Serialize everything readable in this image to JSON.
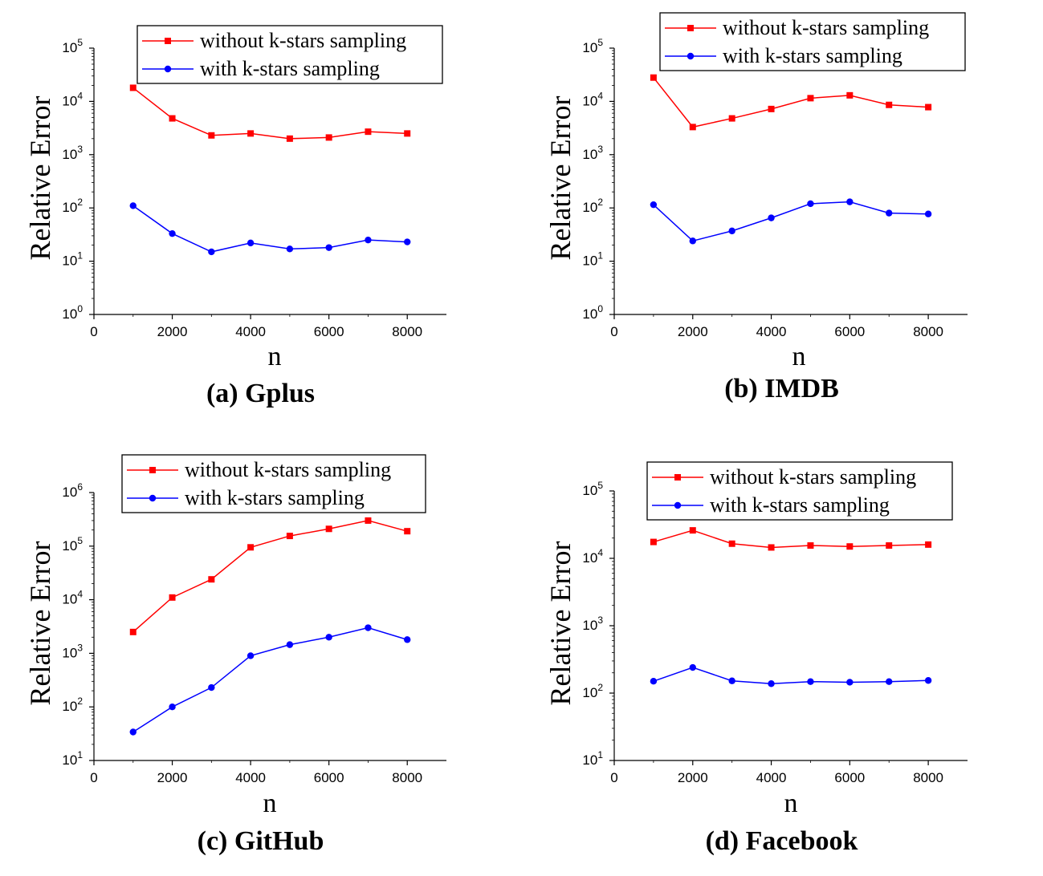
{
  "chart_data": [
    {
      "type": "line",
      "caption": "(a) Gplus",
      "xlabel": "n",
      "ylabel": "Relative Error",
      "x": [
        1000,
        2000,
        3000,
        4000,
        5000,
        6000,
        7000,
        8000
      ],
      "xlim": [
        0,
        9000
      ],
      "xticks": [
        0,
        2000,
        4000,
        6000,
        8000
      ],
      "yscale": "log",
      "ylim_exp": [
        0,
        5
      ],
      "legend_position": "top-right",
      "grid": false,
      "series": [
        {
          "name": "without k-stars sampling",
          "color": "#ff0000",
          "marker": "square",
          "values": [
            18000,
            4800,
            2300,
            2500,
            2000,
            2100,
            2700,
            2500
          ]
        },
        {
          "name": "with k-stars sampling",
          "color": "#0000ff",
          "marker": "circle",
          "values": [
            110,
            33,
            15,
            22,
            17,
            18,
            25,
            23
          ]
        }
      ]
    },
    {
      "type": "line",
      "caption": "(b) IMDB",
      "xlabel": "n",
      "ylabel": "Relative Error",
      "x": [
        1000,
        2000,
        3000,
        4000,
        5000,
        6000,
        7000,
        8000
      ],
      "xlim": [
        0,
        9000
      ],
      "xticks": [
        0,
        2000,
        4000,
        6000,
        8000
      ],
      "yscale": "log",
      "ylim_exp": [
        0,
        5
      ],
      "legend_position": "top-right",
      "grid": false,
      "series": [
        {
          "name": "without k-stars sampling",
          "color": "#ff0000",
          "marker": "square",
          "values": [
            28000,
            3300,
            4800,
            7200,
            11500,
            13000,
            8600,
            7800
          ]
        },
        {
          "name": "with k-stars sampling",
          "color": "#0000ff",
          "marker": "circle",
          "values": [
            115,
            24,
            37,
            65,
            120,
            130,
            80,
            77
          ]
        }
      ]
    },
    {
      "type": "line",
      "caption": "(c) GitHub",
      "xlabel": "n",
      "ylabel": "Relative Error",
      "x": [
        1000,
        2000,
        3000,
        4000,
        5000,
        6000,
        7000,
        8000
      ],
      "xlim": [
        0,
        9000
      ],
      "xticks": [
        0,
        2000,
        4000,
        6000,
        8000
      ],
      "yscale": "log",
      "ylim_exp": [
        1,
        6
      ],
      "legend_position": "top-right",
      "grid": false,
      "series": [
        {
          "name": "without k-stars sampling",
          "color": "#ff0000",
          "marker": "square",
          "values": [
            2500,
            11000,
            24000,
            95000,
            155000,
            210000,
            300000,
            190000
          ]
        },
        {
          "name": "with k-stars sampling",
          "color": "#0000ff",
          "marker": "circle",
          "values": [
            34,
            100,
            230,
            900,
            1450,
            2000,
            3000,
            1800
          ]
        }
      ]
    },
    {
      "type": "line",
      "caption": "(d) Facebook",
      "xlabel": "n",
      "ylabel": "Relative Error",
      "x": [
        1000,
        2000,
        3000,
        4000,
        5000,
        6000,
        7000,
        8000
      ],
      "xlim": [
        0,
        9000
      ],
      "xticks": [
        0,
        2000,
        4000,
        6000,
        8000
      ],
      "yscale": "log",
      "ylim_exp": [
        1,
        5
      ],
      "legend_position": "top-right",
      "grid": false,
      "series": [
        {
          "name": "without k-stars sampling",
          "color": "#ff0000",
          "marker": "square",
          "values": [
            17500,
            26000,
            16500,
            14500,
            15500,
            15000,
            15500,
            16000
          ]
        },
        {
          "name": "with k-stars sampling",
          "color": "#0000ff",
          "marker": "circle",
          "values": [
            150,
            240,
            152,
            138,
            148,
            145,
            148,
            154
          ]
        }
      ]
    }
  ]
}
